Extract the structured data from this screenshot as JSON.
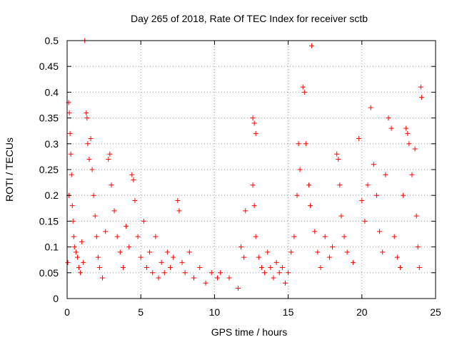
{
  "chart_data": {
    "type": "scatter",
    "title": "Day 265 of 2018, Rate Of TEC Index for receiver sctb",
    "xlabel": "GPS time / hours",
    "ylabel": "ROTI / TECUs",
    "xlim": [
      0,
      25
    ],
    "ylim": [
      0,
      0.5
    ],
    "x_ticks": [
      "0",
      "5",
      "10",
      "15",
      "20",
      "25"
    ],
    "y_ticks": [
      "0",
      "0.05",
      "0.1",
      "0.15",
      "0.2",
      "0.25",
      "0.3",
      "0.35",
      "0.4",
      "0.45",
      "0.5"
    ],
    "grid": true,
    "marker": "+",
    "color": "#ff0000",
    "series": [
      {
        "points": [
          [
            0.05,
            0.07
          ],
          [
            0.1,
            0.38
          ],
          [
            0.15,
            0.36
          ],
          [
            0.2,
            0.32
          ],
          [
            0.25,
            0.28
          ],
          [
            0.3,
            0.24
          ],
          [
            0.12,
            0.2
          ],
          [
            0.35,
            0.18
          ],
          [
            0.4,
            0.15
          ],
          [
            0.45,
            0.12
          ],
          [
            0.5,
            0.1
          ],
          [
            0.6,
            0.09
          ],
          [
            0.7,
            0.08
          ],
          [
            0.8,
            0.06
          ],
          [
            0.9,
            0.05
          ],
          [
            1.0,
            0.11
          ],
          [
            1.1,
            0.07
          ],
          [
            1.2,
            0.5
          ],
          [
            1.3,
            0.36
          ],
          [
            1.35,
            0.35
          ],
          [
            1.4,
            0.3
          ],
          [
            1.5,
            0.27
          ],
          [
            1.6,
            0.31
          ],
          [
            1.7,
            0.25
          ],
          [
            1.8,
            0.2
          ],
          [
            1.9,
            0.16
          ],
          [
            2.0,
            0.12
          ],
          [
            2.1,
            0.08
          ],
          [
            2.2,
            0.06
          ],
          [
            2.4,
            0.04
          ],
          [
            2.6,
            0.13
          ],
          [
            2.8,
            0.27
          ],
          [
            2.9,
            0.28
          ],
          [
            3.0,
            0.22
          ],
          [
            3.2,
            0.17
          ],
          [
            3.4,
            0.12
          ],
          [
            3.6,
            0.09
          ],
          [
            3.8,
            0.06
          ],
          [
            4.0,
            0.14
          ],
          [
            4.2,
            0.1
          ],
          [
            4.4,
            0.24
          ],
          [
            4.5,
            0.23
          ],
          [
            4.6,
            0.19
          ],
          [
            4.8,
            0.12
          ],
          [
            5.0,
            0.08
          ],
          [
            5.2,
            0.15
          ],
          [
            5.4,
            0.06
          ],
          [
            5.6,
            0.09
          ],
          [
            5.8,
            0.05
          ],
          [
            6.0,
            0.12
          ],
          [
            6.2,
            0.04
          ],
          [
            6.4,
            0.07
          ],
          [
            6.6,
            0.05
          ],
          [
            6.8,
            0.09
          ],
          [
            7.0,
            0.06
          ],
          [
            7.2,
            0.08
          ],
          [
            7.5,
            0.19
          ],
          [
            7.6,
            0.17
          ],
          [
            7.8,
            0.07
          ],
          [
            8.0,
            0.05
          ],
          [
            8.3,
            0.09
          ],
          [
            8.6,
            0.04
          ],
          [
            9.0,
            0.06
          ],
          [
            9.4,
            0.03
          ],
          [
            9.8,
            0.05
          ],
          [
            10.2,
            0.04
          ],
          [
            10.4,
            0.05
          ],
          [
            11.0,
            0.04
          ],
          [
            11.6,
            0.02
          ],
          [
            11.8,
            0.1
          ],
          [
            12.0,
            0.08
          ],
          [
            12.1,
            0.17
          ],
          [
            12.6,
            0.35
          ],
          [
            12.7,
            0.34
          ],
          [
            12.8,
            0.32
          ],
          [
            12.6,
            0.22
          ],
          [
            12.7,
            0.18
          ],
          [
            12.8,
            0.12
          ],
          [
            13.0,
            0.08
          ],
          [
            13.2,
            0.06
          ],
          [
            13.4,
            0.05
          ],
          [
            13.6,
            0.09
          ],
          [
            13.8,
            0.06
          ],
          [
            14.0,
            0.04
          ],
          [
            14.2,
            0.07
          ],
          [
            14.4,
            0.05
          ],
          [
            14.6,
            0.06
          ],
          [
            14.8,
            0.03
          ],
          [
            15.0,
            0.05
          ],
          [
            15.2,
            0.09
          ],
          [
            15.4,
            0.12
          ],
          [
            15.6,
            0.2
          ],
          [
            15.8,
            0.25
          ],
          [
            15.7,
            0.3
          ],
          [
            16.0,
            0.41
          ],
          [
            16.1,
            0.4
          ],
          [
            16.2,
            0.3
          ],
          [
            16.4,
            0.22
          ],
          [
            16.6,
            0.49
          ],
          [
            16.5,
            0.18
          ],
          [
            16.8,
            0.13
          ],
          [
            17.0,
            0.09
          ],
          [
            17.2,
            0.06
          ],
          [
            17.5,
            0.12
          ],
          [
            17.8,
            0.08
          ],
          [
            18.0,
            0.1
          ],
          [
            18.3,
            0.28
          ],
          [
            18.4,
            0.27
          ],
          [
            18.5,
            0.22
          ],
          [
            18.6,
            0.16
          ],
          [
            18.8,
            0.12
          ],
          [
            19.0,
            0.09
          ],
          [
            19.4,
            0.07
          ],
          [
            19.8,
            0.31
          ],
          [
            20.0,
            0.19
          ],
          [
            20.2,
            0.15
          ],
          [
            20.4,
            0.22
          ],
          [
            20.6,
            0.37
          ],
          [
            20.8,
            0.26
          ],
          [
            21.0,
            0.2
          ],
          [
            21.2,
            0.13
          ],
          [
            21.4,
            0.09
          ],
          [
            21.6,
            0.24
          ],
          [
            21.8,
            0.35
          ],
          [
            22.0,
            0.33
          ],
          [
            22.2,
            0.12
          ],
          [
            22.4,
            0.08
          ],
          [
            22.6,
            0.06
          ],
          [
            22.8,
            0.2
          ],
          [
            23.0,
            0.33
          ],
          [
            23.1,
            0.32
          ],
          [
            23.2,
            0.3
          ],
          [
            23.4,
            0.24
          ],
          [
            23.6,
            0.29
          ],
          [
            23.7,
            0.16
          ],
          [
            23.8,
            0.1
          ],
          [
            23.9,
            0.06
          ],
          [
            24.0,
            0.41
          ],
          [
            24.05,
            0.39
          ]
        ]
      }
    ]
  }
}
